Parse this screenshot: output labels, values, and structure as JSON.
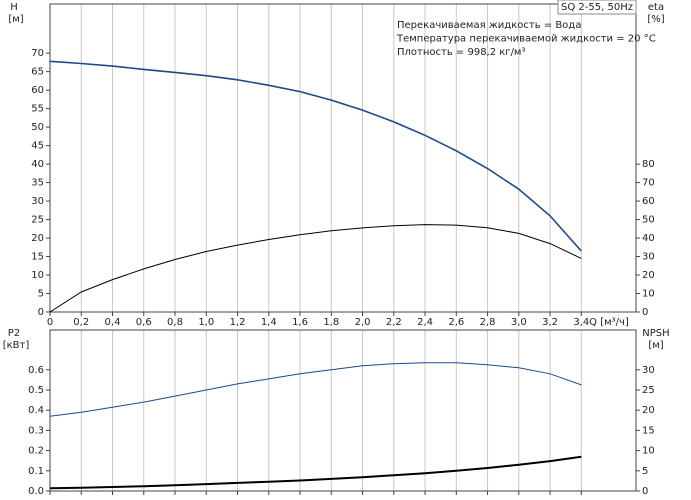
{
  "chart_data": [
    {
      "type": "line",
      "title": "SQ 2-55, 50Hz",
      "annotations": [
        "Перекачиваемая жидкость = Вода",
        "Температура перекачиваемой жидкости = 20 °C",
        "Плотность = 998,2 кг/м³"
      ],
      "y_label": "H",
      "y_unit": "[м]",
      "y2_label": "eta",
      "y2_unit": "[%]",
      "x_label": "Q [м³/ч]",
      "x": [
        0,
        0.2,
        0.4,
        0.6,
        0.8,
        1.0,
        1.2,
        1.4,
        1.6,
        1.8,
        2.0,
        2.2,
        2.4,
        2.6,
        2.8,
        3.0,
        3.2,
        3.4
      ],
      "xlim": [
        0,
        3.75
      ],
      "xticks": [
        0,
        {
          "value": 0.2,
          "label": "0,2"
        },
        {
          "value": 0.4,
          "label": "0,4"
        },
        {
          "value": 0.6,
          "label": "0,6"
        },
        {
          "value": 0.8,
          "label": "0,8"
        },
        {
          "value": 1.0,
          "label": "1,0"
        },
        {
          "value": 1.2,
          "label": "1,2"
        },
        {
          "value": 1.4,
          "label": "1,4"
        },
        {
          "value": 1.6,
          "label": "1,6"
        },
        {
          "value": 1.8,
          "label": "1,8"
        },
        {
          "value": 2.0,
          "label": "2,0"
        },
        {
          "value": 2.2,
          "label": "2,2"
        },
        {
          "value": 2.4,
          "label": "2,4"
        },
        {
          "value": 2.6,
          "label": "2,6"
        },
        {
          "value": 2.8,
          "label": "2,8"
        },
        {
          "value": 3.0,
          "label": "3,0"
        },
        {
          "value": 3.2,
          "label": "3,2"
        },
        {
          "value": 3.4,
          "label": "3,4"
        }
      ],
      "ylim": [
        0,
        83.3
      ],
      "yticks": [
        0,
        5,
        10,
        15,
        20,
        25,
        30,
        35,
        40,
        45,
        50,
        55,
        60,
        65,
        70
      ],
      "y2lim": [
        0,
        166.6
      ],
      "y2ticks": [
        0,
        10,
        20,
        30,
        40,
        50,
        60,
        70,
        80
      ],
      "grid": true,
      "series": [
        {
          "name": "H",
          "color": "#1a4a8a",
          "values": [
            67.8,
            67.2,
            66.5,
            65.6,
            64.8,
            63.9,
            62.8,
            61.3,
            59.6,
            57.3,
            54.6,
            51.4,
            47.8,
            43.6,
            38.8,
            33.2,
            26.0,
            16.5
          ]
        },
        {
          "name": "eta",
          "color": "#000000",
          "axis": "y2",
          "values": [
            0,
            10.8,
            17.5,
            23.3,
            28.4,
            32.7,
            36.2,
            39.2,
            41.8,
            43.9,
            45.5,
            46.7,
            47.3,
            47.0,
            45.6,
            42.5,
            37.0,
            29.0
          ]
        }
      ]
    },
    {
      "type": "line",
      "y_label": "P2",
      "y_unit": "[кВт]",
      "y2_label": "NPSH",
      "y2_unit": "[м]",
      "x": [
        0,
        0.2,
        0.4,
        0.6,
        0.8,
        1.0,
        1.2,
        1.4,
        1.6,
        1.8,
        2.0,
        2.2,
        2.4,
        2.6,
        2.8,
        3.0,
        3.2,
        3.4
      ],
      "xlim": [
        0,
        3.75
      ],
      "xticks": [
        0,
        0.2,
        0.4,
        0.6,
        0.8,
        1.0,
        1.2,
        1.4,
        1.6,
        1.8,
        2.0,
        2.2,
        2.4,
        2.6,
        2.8,
        3.0,
        3.2,
        3.4
      ],
      "ylim": [
        0,
        0.797
      ],
      "yticks": [
        {
          "value": 0,
          "label": "0.0"
        },
        0.1,
        0.2,
        0.3,
        0.4,
        0.5,
        0.6
      ],
      "y2lim": [
        0,
        39.85
      ],
      "y2ticks": [
        0,
        5,
        10,
        15,
        20,
        25,
        30
      ],
      "grid": true,
      "series": [
        {
          "name": "P2",
          "color": "#1a4a8a",
          "values": [
            0.37,
            0.39,
            0.415,
            0.44,
            0.47,
            0.5,
            0.53,
            0.555,
            0.58,
            0.6,
            0.62,
            0.63,
            0.635,
            0.635,
            0.625,
            0.61,
            0.58,
            0.525
          ]
        },
        {
          "name": "NPSH",
          "color": "#000000",
          "axis": "y2",
          "values": [
            0.7,
            0.8,
            1.0,
            1.2,
            1.4,
            1.7,
            2.0,
            2.3,
            2.6,
            3.0,
            3.4,
            3.9,
            4.4,
            5.0,
            5.7,
            6.5,
            7.4,
            8.5
          ]
        }
      ]
    }
  ]
}
